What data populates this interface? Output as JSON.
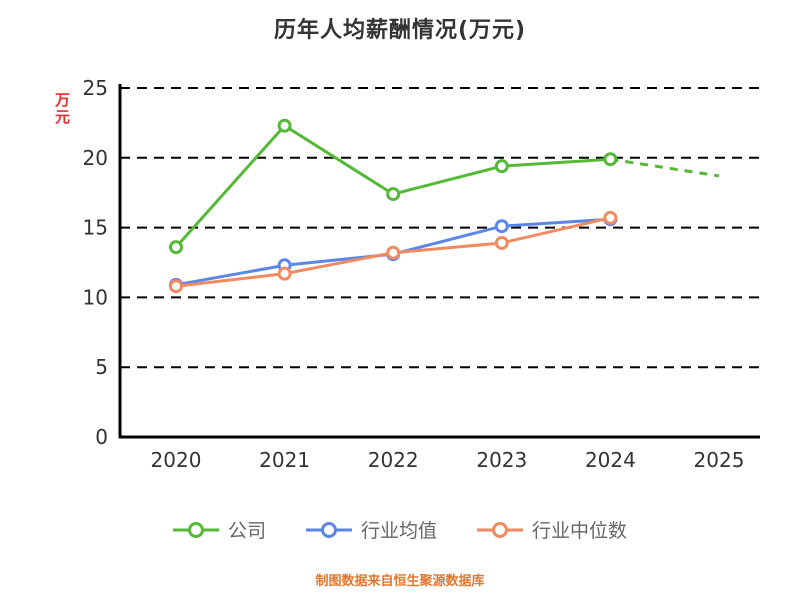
{
  "title": "历年人均薪酬情况(万元)",
  "footer": "制图数据来自恒生聚源数据库",
  "chart_data": {
    "type": "line",
    "title": "历年人均薪酬情况(万元)",
    "xlabel": "",
    "ylabel": "万元",
    "categories": [
      "2020",
      "2021",
      "2022",
      "2023",
      "2024",
      "2025"
    ],
    "ylim": [
      0,
      25
    ],
    "yticks": [
      0,
      5,
      10,
      15,
      20,
      25
    ],
    "grid": true,
    "legend_position": "bottom",
    "series": [
      {
        "name": "公司",
        "color": "#55b837",
        "values": [
          13.6,
          22.3,
          17.4,
          19.4,
          19.9,
          18.7
        ],
        "dashed_tail": true
      },
      {
        "name": "行业均值",
        "color": "#5b86e8",
        "values": [
          10.9,
          12.3,
          13.1,
          15.1,
          15.6,
          null
        ]
      },
      {
        "name": "行业中位数",
        "color": "#f28a5f",
        "values": [
          10.8,
          11.7,
          13.2,
          13.9,
          15.7,
          null
        ]
      }
    ],
    "colors": {
      "grid": "#000000",
      "axis": "#000000",
      "tick": "#333333",
      "title": "#333333",
      "ylabel": "#e0302e",
      "footer": "#e2772e",
      "marker_fill": "#ffffff"
    }
  }
}
